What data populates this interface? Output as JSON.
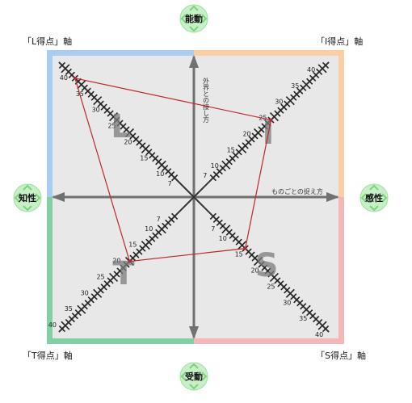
{
  "axes": {
    "top": "能動",
    "bottom": "受動",
    "left": "知性",
    "right": "感性",
    "vertical_title": "外界との接し方",
    "horizontal_title": "ものごとの捉え方"
  },
  "corners": {
    "top_left": "「L得点」軸",
    "top_right": "「I得点」軸",
    "bottom_left": "「T得点」軸",
    "bottom_right": "「S得点」軸"
  },
  "quadrant_letters": {
    "top_left": "L",
    "top_right": "I",
    "bottom_left": "T",
    "bottom_right": "S"
  },
  "colors": {
    "top_left": "#a9cdf0",
    "top_right": "#f9cfa3",
    "bottom_left": "#80d0a3",
    "bottom_right": "#f5b6b8",
    "plot_bg": "#e8e8e8",
    "axis": "#707070",
    "polygon": "#c0262d",
    "badge": "#c7f0c7"
  },
  "chart_data": {
    "type": "radar",
    "scale_ticks": [
      7,
      10,
      15,
      20,
      25,
      30,
      35,
      40
    ],
    "max": 40,
    "values": {
      "L": 37,
      "I": 24,
      "T": 20,
      "S": 16
    }
  }
}
